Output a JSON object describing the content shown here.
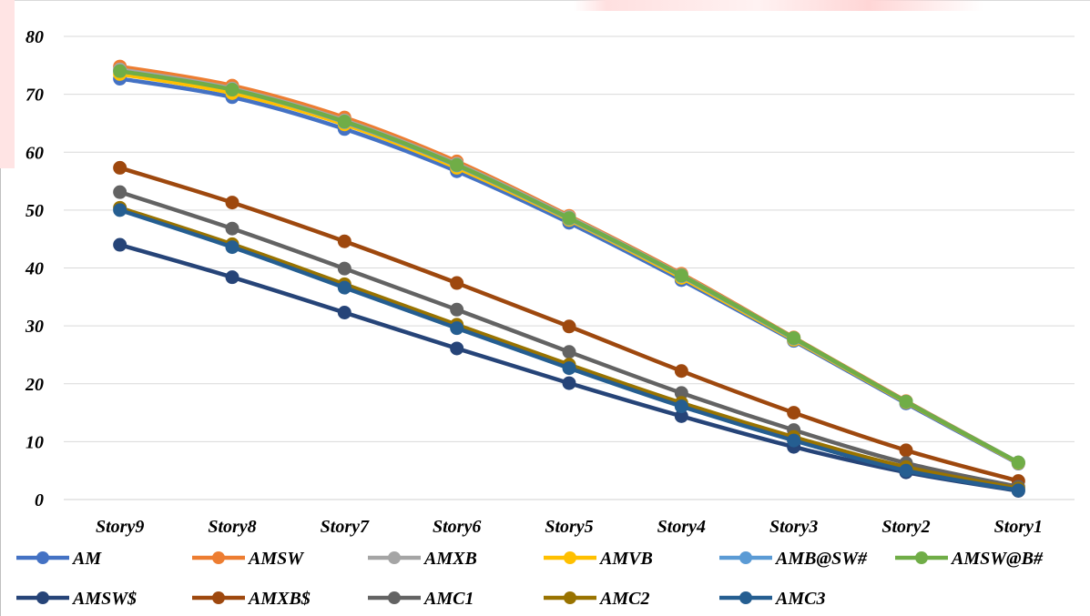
{
  "chart_data": {
    "type": "line",
    "title": "",
    "xlabel": "",
    "ylabel": "",
    "categories": [
      "Story9",
      "Story8",
      "Story7",
      "Story6",
      "Story5",
      "Story4",
      "Story3",
      "Story2",
      "Story1"
    ],
    "ylim": [
      0,
      80
    ],
    "yticks": [
      0,
      10,
      20,
      30,
      40,
      50,
      60,
      70,
      80
    ],
    "grid": true,
    "legend_position": "bottom",
    "series": [
      {
        "name": "AM",
        "color": "#4472c4",
        "values": [
          72.7,
          69.5,
          64.0,
          56.7,
          47.8,
          37.9,
          27.4,
          16.6,
          6.2
        ]
      },
      {
        "name": "AMSW",
        "color": "#ed7d31",
        "values": [
          74.8,
          71.5,
          66.0,
          58.4,
          49.0,
          39.0,
          28.0,
          17.0,
          6.4
        ]
      },
      {
        "name": "AMXB",
        "color": "#a5a5a5",
        "values": [
          74.3,
          71.0,
          65.5,
          58.0,
          48.8,
          38.8,
          27.9,
          16.9,
          6.4
        ]
      },
      {
        "name": "AMVB",
        "color": "#ffc000",
        "values": [
          73.5,
          70.2,
          64.8,
          57.3,
          48.3,
          38.3,
          27.6,
          16.8,
          6.3
        ]
      },
      {
        "name": "AMB@SW#",
        "color": "#5b9bd5",
        "values": [
          74.0,
          70.8,
          65.2,
          57.7,
          48.5,
          38.6,
          27.8,
          16.9,
          6.4
        ]
      },
      {
        "name": "AMSW@B#",
        "color": "#70ad47",
        "values": [
          74.0,
          70.8,
          65.3,
          57.8,
          48.6,
          38.7,
          27.9,
          16.9,
          6.4
        ]
      },
      {
        "name": "AMSW$",
        "color": "#264478",
        "values": [
          44.0,
          38.4,
          32.3,
          26.1,
          20.1,
          14.4,
          9.1,
          4.7,
          1.5
        ]
      },
      {
        "name": "AMXB$",
        "color": "#9e480e",
        "values": [
          57.3,
          51.3,
          44.6,
          37.4,
          29.9,
          22.2,
          15.0,
          8.5,
          3.2
        ]
      },
      {
        "name": "AMC1",
        "color": "#636363",
        "values": [
          53.1,
          46.8,
          39.9,
          32.8,
          25.5,
          18.4,
          12.0,
          6.3,
          2.2
        ]
      },
      {
        "name": "AMC2",
        "color": "#997300",
        "values": [
          50.4,
          44.1,
          37.2,
          30.2,
          23.3,
          16.7,
          10.8,
          5.6,
          1.9
        ]
      },
      {
        "name": "AMC3",
        "color": "#255e91",
        "values": [
          50.0,
          43.6,
          36.6,
          29.6,
          22.7,
          16.1,
          10.2,
          5.0,
          1.6
        ]
      }
    ]
  }
}
